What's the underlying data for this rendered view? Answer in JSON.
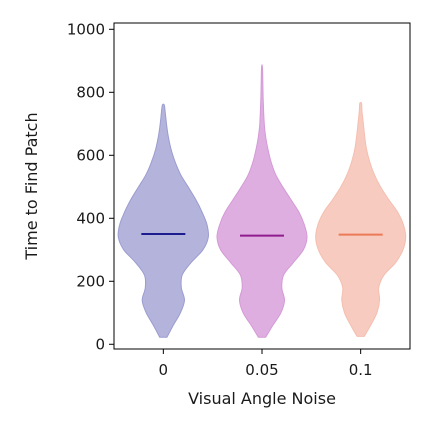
{
  "chart_data": {
    "type": "violin",
    "title": "",
    "xlabel": "Visual Angle Noise",
    "ylabel": "Time to Find Patch",
    "categories": [
      "0",
      "0.05",
      "0.1"
    ],
    "ylim": [
      -15,
      1020
    ],
    "yticks": [
      0,
      200,
      400,
      600,
      800,
      1000
    ],
    "yticklabels": [
      "0",
      "200",
      "400",
      "600",
      "800",
      "1000"
    ],
    "grid": false,
    "legend": "none",
    "series": [
      {
        "category": "0",
        "fill_color": "#b3b3dc",
        "edge_color": "#9c9cd0",
        "median_color": "#1c1c8e",
        "min": 22,
        "max": 760,
        "median": 350,
        "density": [
          [
            22,
            0.08
          ],
          [
            60,
            0.22
          ],
          [
            100,
            0.38
          ],
          [
            140,
            0.47
          ],
          [
            180,
            0.4
          ],
          [
            220,
            0.42
          ],
          [
            260,
            0.62
          ],
          [
            300,
            0.88
          ],
          [
            340,
            1.0
          ],
          [
            380,
            0.97
          ],
          [
            420,
            0.86
          ],
          [
            460,
            0.72
          ],
          [
            500,
            0.55
          ],
          [
            540,
            0.38
          ],
          [
            580,
            0.26
          ],
          [
            620,
            0.17
          ],
          [
            660,
            0.11
          ],
          [
            700,
            0.07
          ],
          [
            740,
            0.04
          ],
          [
            760,
            0.02
          ]
        ]
      },
      {
        "category": "0.05",
        "fill_color": "#deaee0",
        "edge_color": "#d49ad6",
        "median_color": "#8e1c8e",
        "min": 22,
        "max": 880,
        "median": 345,
        "density": [
          [
            22,
            0.08
          ],
          [
            60,
            0.24
          ],
          [
            100,
            0.42
          ],
          [
            140,
            0.5
          ],
          [
            180,
            0.44
          ],
          [
            220,
            0.48
          ],
          [
            260,
            0.7
          ],
          [
            300,
            0.92
          ],
          [
            340,
            1.0
          ],
          [
            380,
            0.94
          ],
          [
            420,
            0.82
          ],
          [
            460,
            0.64
          ],
          [
            500,
            0.46
          ],
          [
            540,
            0.3
          ],
          [
            580,
            0.2
          ],
          [
            620,
            0.13
          ],
          [
            660,
            0.08
          ],
          [
            700,
            0.05
          ],
          [
            760,
            0.03
          ],
          [
            820,
            0.02
          ],
          [
            880,
            0.01
          ]
        ]
      },
      {
        "category": "0.1",
        "fill_color": "#f7cbbf",
        "edge_color": "#f4bfb0",
        "median_color": "#ec7a58",
        "min": 25,
        "max": 765,
        "median": 348,
        "density": [
          [
            25,
            0.08
          ],
          [
            60,
            0.22
          ],
          [
            100,
            0.36
          ],
          [
            140,
            0.42
          ],
          [
            180,
            0.4
          ],
          [
            220,
            0.52
          ],
          [
            260,
            0.78
          ],
          [
            300,
            0.94
          ],
          [
            340,
            1.0
          ],
          [
            380,
            0.95
          ],
          [
            420,
            0.82
          ],
          [
            460,
            0.62
          ],
          [
            500,
            0.44
          ],
          [
            540,
            0.3
          ],
          [
            580,
            0.2
          ],
          [
            620,
            0.13
          ],
          [
            660,
            0.09
          ],
          [
            700,
            0.06
          ],
          [
            740,
            0.03
          ],
          [
            765,
            0.02
          ]
        ]
      }
    ]
  }
}
